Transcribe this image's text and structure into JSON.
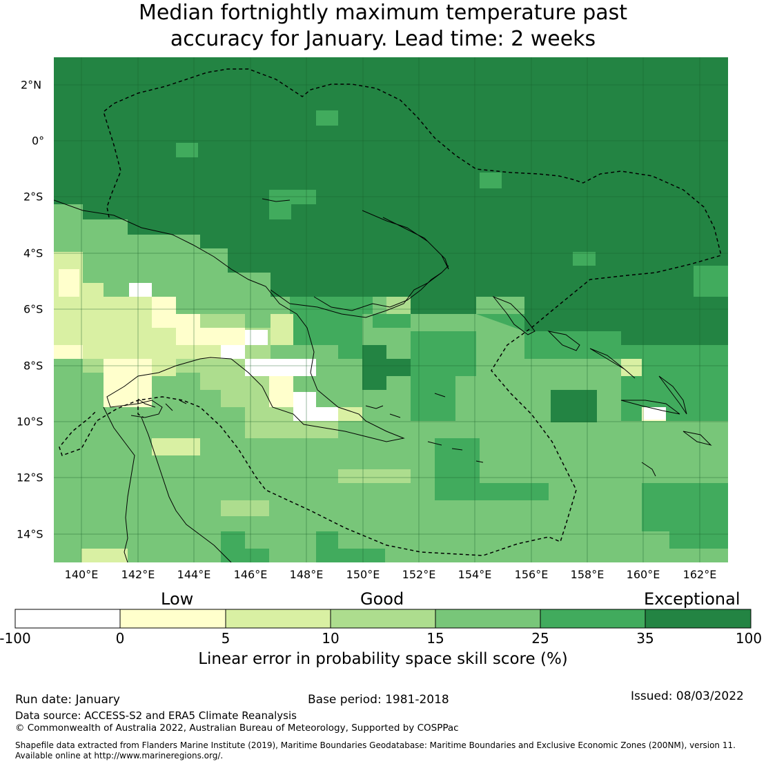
{
  "title": {
    "line1": "Median fortnightly maximum temperature past",
    "line2": "accuracy for January. Lead time: 2 weeks"
  },
  "map": {
    "lat_labels": [
      "2°N",
      "0°",
      "2°S",
      "4°S",
      "6°S",
      "8°S",
      "10°S",
      "12°S",
      "14°S"
    ],
    "lat_values": [
      2,
      0,
      -2,
      -4,
      -6,
      -8,
      -10,
      -12,
      -14
    ],
    "lon_labels": [
      "140°E",
      "142°E",
      "144°E",
      "146°E",
      "148°E",
      "150°E",
      "152°E",
      "154°E",
      "156°E",
      "158°E",
      "160°E",
      "162°E"
    ],
    "lon_values": [
      140,
      142,
      144,
      146,
      148,
      150,
      152,
      154,
      156,
      158,
      160,
      162
    ],
    "extent": {
      "lon_min": 139,
      "lon_max": 163,
      "lat_min": -15,
      "lat_max": 3
    },
    "grid_step_deg": 0.8
  },
  "legend": {
    "category_labels": [
      "Low",
      "Good",
      "Exceptional"
    ],
    "tick_labels": [
      "-100",
      "0",
      "5",
      "10",
      "15",
      "25",
      "35",
      "100"
    ],
    "colors": [
      "#ffffff",
      "#ffffcc",
      "#d9f0a3",
      "#addd8e",
      "#78c679",
      "#41ab5d",
      "#238443"
    ],
    "axis_title": "Linear error in probability space skill score (%)"
  },
  "footer": {
    "run_date": "Run date: January",
    "base_period": "Base period: 1981-2018",
    "issued": "Issued: 08/03/2022",
    "data_source": "Data source: ACCESS-S2 and ERA5 Climate Reanalysis",
    "copyright": "© Commonwealth of Australia 2022, Australian Bureau of Meteorology, Supported by COSPPac",
    "shapefile_line1": "Shapefile data extracted from Flanders Marine Institute (2019), Maritime Boundaries Geodatabase: Maritime Boundaries and Exclusive Economic Zones (200NM), version 11.",
    "shapefile_line2": "Available online at http://www.marineregions.org/."
  }
}
